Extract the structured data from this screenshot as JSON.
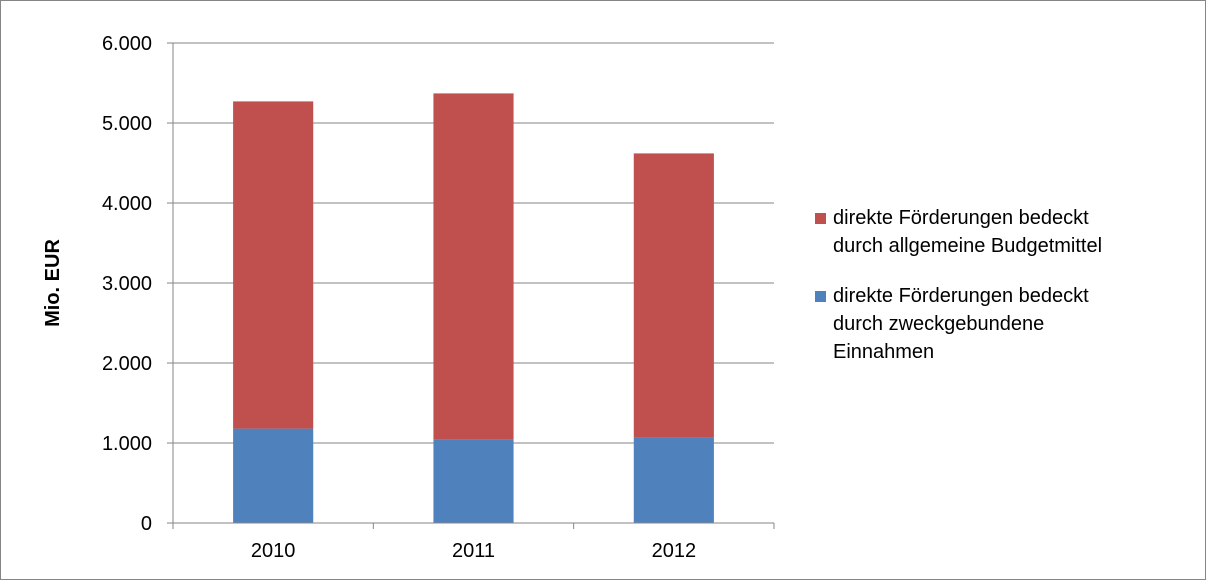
{
  "chart_data": {
    "type": "bar",
    "stacked": true,
    "categories": [
      "2010",
      "2011",
      "2012"
    ],
    "series": [
      {
        "name": "direkte Förderungen bedeckt durch zweckgebundene Einnahmen",
        "legend_text": "direkte Förderungen bedeckt\ndurch zweckgebundene\nEinnahmen",
        "color": "#4F81BD",
        "values": [
          1180,
          1040,
          1070
        ]
      },
      {
        "name": "direkte Förderungen bedeckt durch allgemeine Budgetmittel",
        "legend_text": "direkte Förderungen bedeckt\ndurch allgemeine Budgetmittel",
        "color": "#C0504D",
        "values": [
          4090,
          4330,
          3550
        ]
      }
    ],
    "ylabel": "Mio. EUR",
    "ylim": [
      0,
      6000
    ],
    "yticks": [
      0,
      1000,
      2000,
      3000,
      4000,
      5000,
      6000
    ],
    "ytick_labels": [
      "0",
      "1.000",
      "2.000",
      "3.000",
      "4.000",
      "5.000",
      "6.000"
    ],
    "grid": true,
    "legend_position": "right",
    "legend_order": [
      1,
      0
    ]
  }
}
